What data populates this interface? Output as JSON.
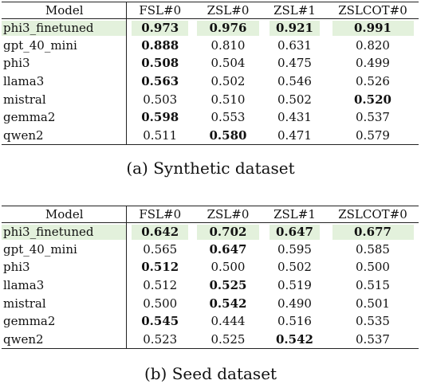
{
  "tables": [
    {
      "caption": "(a) Synthetic dataset",
      "columns": [
        "Model",
        "FSL#0",
        "ZSL#0",
        "ZSL#1",
        "ZSLCOT#0"
      ],
      "rows": [
        {
          "model": "phi3_finetuned",
          "values": [
            "0.973",
            "0.976",
            "0.921",
            "0.991"
          ],
          "bold": [
            true,
            true,
            true,
            true
          ],
          "highlight": true
        },
        {
          "model": "gpt_40_mini",
          "values": [
            "0.888",
            "0.810",
            "0.631",
            "0.820"
          ],
          "bold": [
            true,
            false,
            false,
            false
          ],
          "highlight": false
        },
        {
          "model": "phi3",
          "values": [
            "0.508",
            "0.504",
            "0.475",
            "0.499"
          ],
          "bold": [
            true,
            false,
            false,
            false
          ],
          "highlight": false
        },
        {
          "model": "llama3",
          "values": [
            "0.563",
            "0.502",
            "0.546",
            "0.526"
          ],
          "bold": [
            true,
            false,
            false,
            false
          ],
          "highlight": false
        },
        {
          "model": "mistral",
          "values": [
            "0.503",
            "0.510",
            "0.502",
            "0.520"
          ],
          "bold": [
            false,
            false,
            false,
            true
          ],
          "highlight": false
        },
        {
          "model": "gemma2",
          "values": [
            "0.598",
            "0.553",
            "0.431",
            "0.537"
          ],
          "bold": [
            true,
            false,
            false,
            false
          ],
          "highlight": false
        },
        {
          "model": "qwen2",
          "values": [
            "0.511",
            "0.580",
            "0.471",
            "0.579"
          ],
          "bold": [
            false,
            true,
            false,
            false
          ],
          "highlight": false
        }
      ]
    },
    {
      "caption": "(b) Seed dataset",
      "columns": [
        "Model",
        "FSL#0",
        "ZSL#0",
        "ZSL#1",
        "ZSLCOT#0"
      ],
      "rows": [
        {
          "model": "phi3_finetuned",
          "values": [
            "0.642",
            "0.702",
            "0.647",
            "0.677"
          ],
          "bold": [
            true,
            true,
            true,
            true
          ],
          "highlight": true
        },
        {
          "model": "gpt_40_mini",
          "values": [
            "0.565",
            "0.647",
            "0.595",
            "0.585"
          ],
          "bold": [
            false,
            true,
            false,
            false
          ],
          "highlight": false
        },
        {
          "model": "phi3",
          "values": [
            "0.512",
            "0.500",
            "0.502",
            "0.500"
          ],
          "bold": [
            true,
            false,
            false,
            false
          ],
          "highlight": false
        },
        {
          "model": "llama3",
          "values": [
            "0.512",
            "0.525",
            "0.519",
            "0.515"
          ],
          "bold": [
            false,
            true,
            false,
            false
          ],
          "highlight": false
        },
        {
          "model": "mistral",
          "values": [
            "0.500",
            "0.542",
            "0.490",
            "0.501"
          ],
          "bold": [
            false,
            true,
            false,
            false
          ],
          "highlight": false
        },
        {
          "model": "gemma2",
          "values": [
            "0.545",
            "0.444",
            "0.516",
            "0.535"
          ],
          "bold": [
            true,
            false,
            false,
            false
          ],
          "highlight": false
        },
        {
          "model": "qwen2",
          "values": [
            "0.523",
            "0.525",
            "0.542",
            "0.537"
          ],
          "bold": [
            false,
            false,
            true,
            false
          ],
          "highlight": false
        }
      ]
    }
  ],
  "colors": {
    "highlight": "#e3f1dc",
    "rule": "#222222"
  }
}
